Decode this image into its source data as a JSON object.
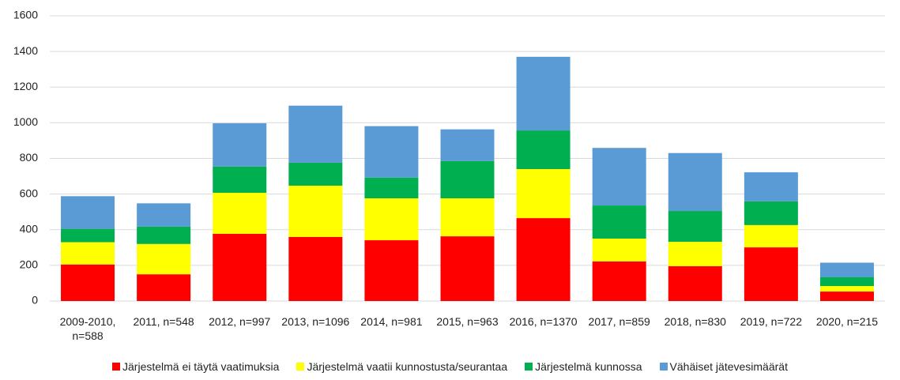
{
  "chart_data": {
    "type": "stacked_bar",
    "categories": [
      "2009-2010, n=588",
      "2011, n=548",
      "2012, n=997",
      "2013, n=1096",
      "2014, n=981",
      "2015, n=963",
      "2016, n=1370",
      "2017, n=859",
      "2018, n=830",
      "2019, n=722",
      "2020, n=215"
    ],
    "series": [
      {
        "name": "Järjestelmä ei täytä vaatimuksia",
        "color": "#ff0000",
        "values": [
          205,
          150,
          377,
          359,
          341,
          363,
          465,
          222,
          195,
          301,
          53
        ]
      },
      {
        "name": "Järjestelmä vaatii kunnostusta/seurantaa",
        "color": "#ffff00",
        "values": [
          125,
          170,
          230,
          288,
          235,
          213,
          275,
          128,
          137,
          125,
          31
        ]
      },
      {
        "name": "Järjestelmä kunnossa",
        "color": "#00b050",
        "values": [
          75,
          97,
          147,
          129,
          116,
          209,
          217,
          186,
          173,
          133,
          49
        ]
      },
      {
        "name": "Vähäiset jätevesimäärät",
        "color": "#5b9bd5",
        "values": [
          183,
          131,
          243,
          320,
          289,
          178,
          413,
          323,
          325,
          163,
          82
        ]
      }
    ],
    "ylim": [
      0,
      1600
    ],
    "yticks": [
      0,
      200,
      400,
      600,
      800,
      1000,
      1200,
      1400,
      1600
    ],
    "grid": true
  }
}
